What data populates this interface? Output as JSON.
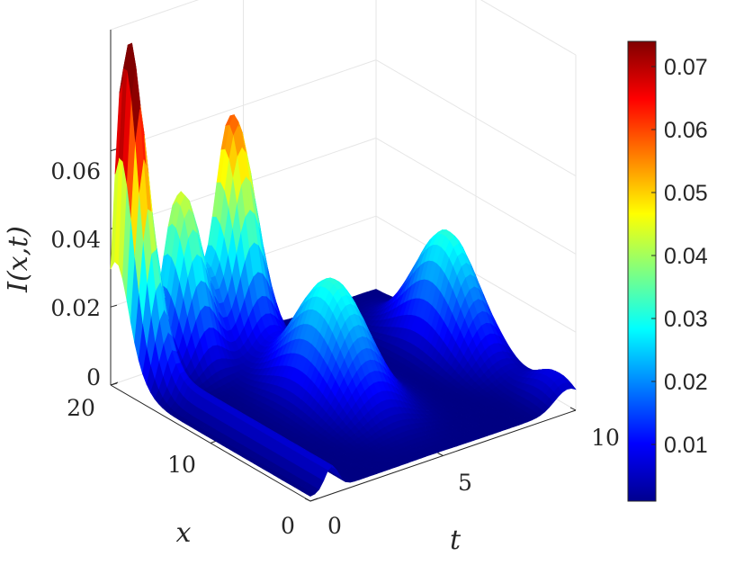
{
  "chart_data": {
    "type": "surface",
    "colormap": "jet",
    "xlabel": "t",
    "ylabel": "x",
    "zlabel": "I(x,t)",
    "t_range": [
      0,
      10
    ],
    "x_range": [
      0,
      20
    ],
    "zlim": [
      0,
      0.07
    ],
    "t_ticks": [
      "0",
      "5",
      "10"
    ],
    "x_ticks": [
      "0",
      "10",
      "20"
    ],
    "z_ticks": [
      "0",
      "0.02",
      "0.04",
      "0.06"
    ],
    "colorbar": {
      "range": [
        0.001,
        0.074
      ],
      "ticks": [
        "0.01",
        "0.02",
        "0.03",
        "0.04",
        "0.05",
        "0.06",
        "0.07"
      ]
    },
    "grid": true,
    "peaks": [
      {
        "t": 0.4,
        "x": 19.6,
        "I": 0.061
      },
      {
        "t": 0.6,
        "x": 18.4,
        "I": 0.034
      },
      {
        "t": 2.5,
        "x": 19.5,
        "I": 0.043
      },
      {
        "t": 4.5,
        "x": 19.7,
        "I": 0.058
      },
      {
        "t": 4.6,
        "x": 10.0,
        "I": 0.03
      },
      {
        "t": 9.3,
        "x": 11.0,
        "I": 0.03
      },
      {
        "t": 9.7,
        "x": 1.5,
        "I": 0.007
      }
    ],
    "ridge_along_x": {
      "t": 0.8,
      "from_x": 0,
      "to_x": 20,
      "I": 0.006
    }
  }
}
